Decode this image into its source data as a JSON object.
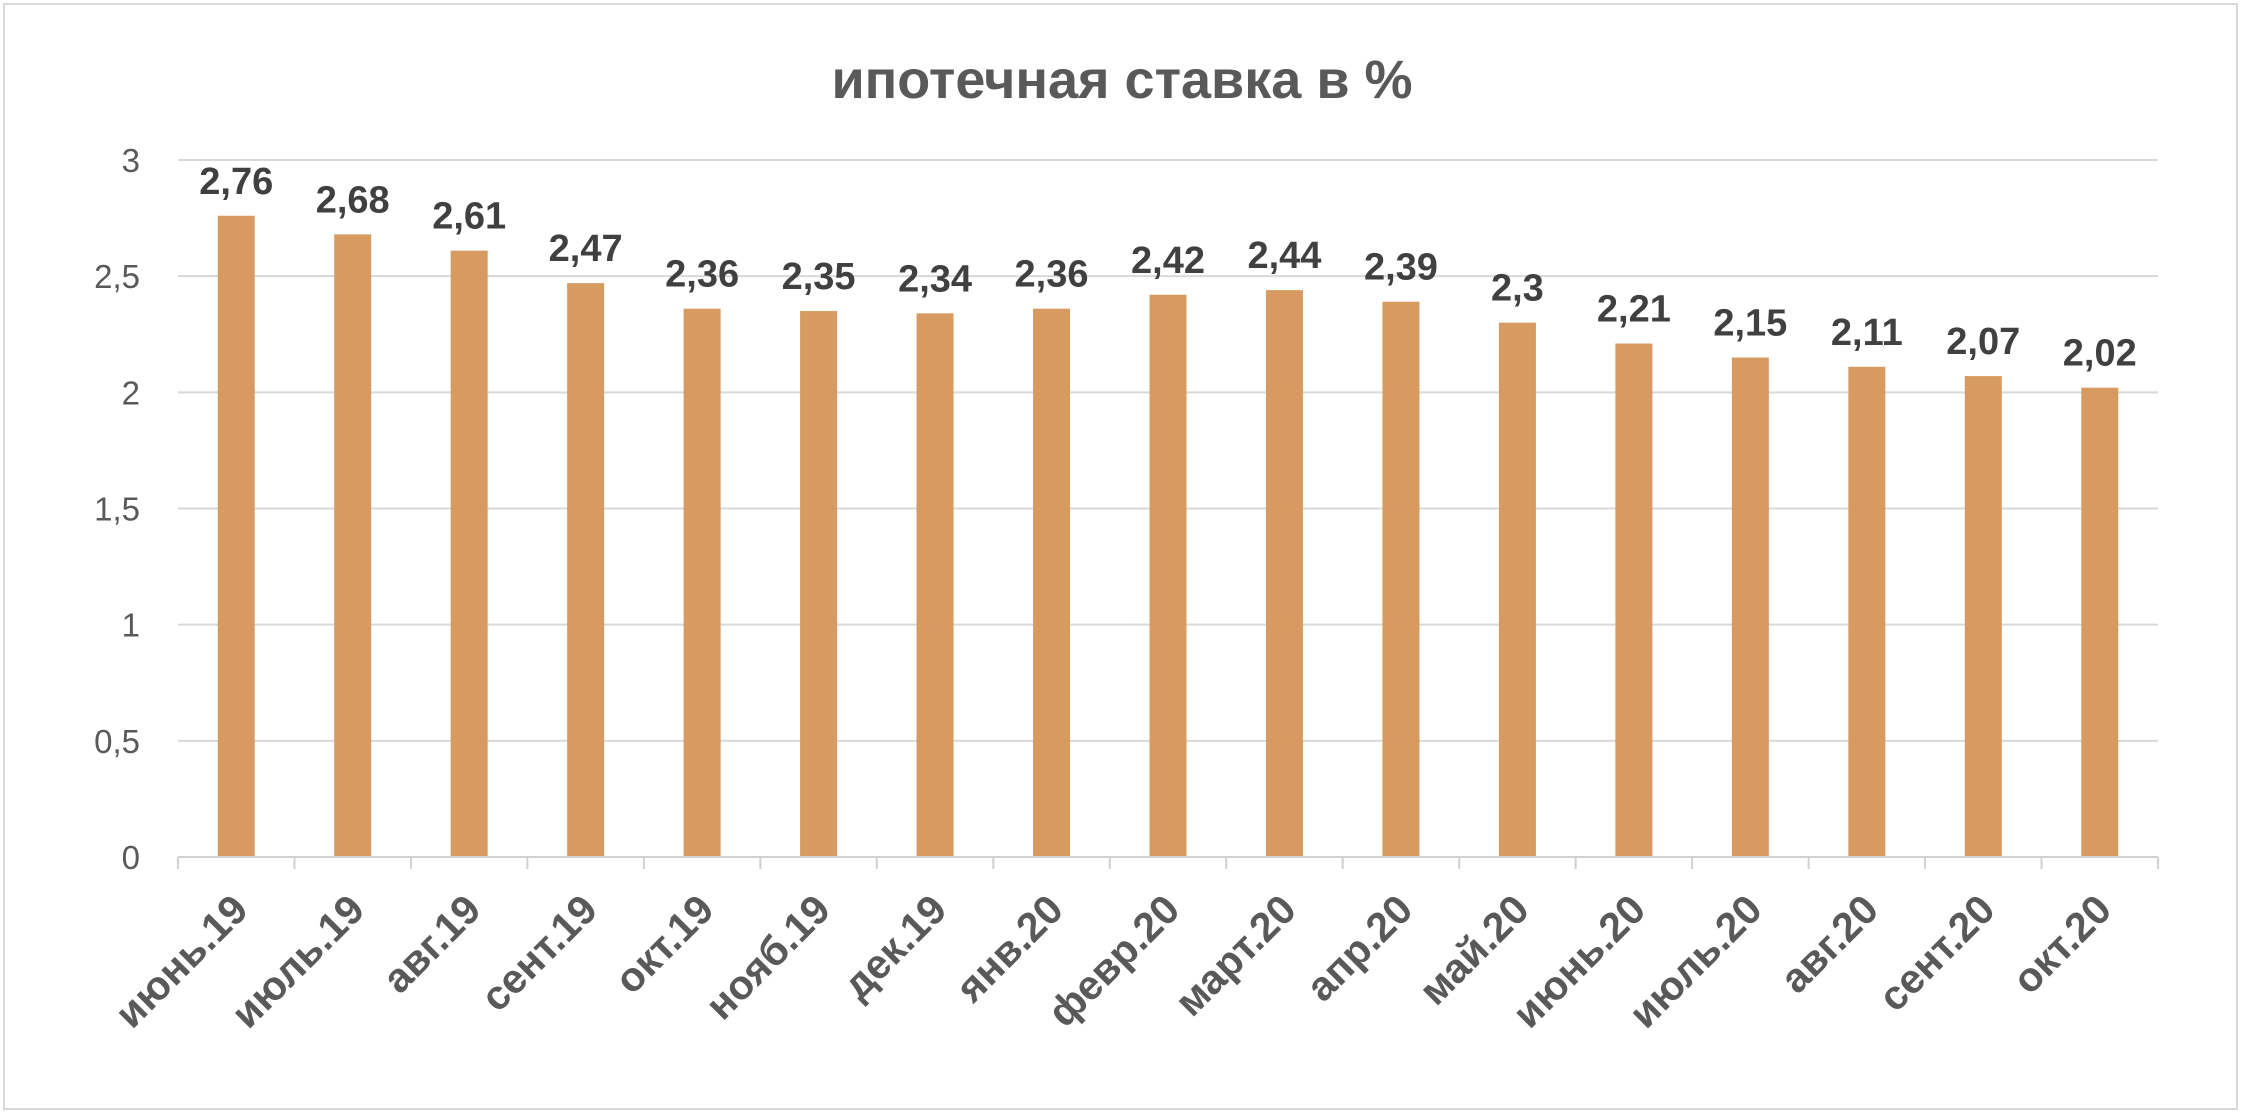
{
  "chart_data": {
    "type": "bar",
    "title": "ипотечная ставка в %",
    "categories": [
      "июнь.19",
      "июль.19",
      "авг.19",
      "сент.19",
      "окт.19",
      "нояб.19",
      "дек.19",
      "янв.20",
      "февр.20",
      "март.20",
      "апр.20",
      "май.20",
      "июнь.20",
      "июль.20",
      "авг.20",
      "сент.20",
      "окт.20"
    ],
    "values": [
      2.76,
      2.68,
      2.61,
      2.47,
      2.36,
      2.35,
      2.34,
      2.36,
      2.42,
      2.44,
      2.39,
      2.3,
      2.21,
      2.15,
      2.11,
      2.07,
      2.02
    ],
    "data_labels": [
      "2,76",
      "2,68",
      "2,61",
      "2,47",
      "2,36",
      "2,35",
      "2,34",
      "2,36",
      "2,42",
      "2,44",
      "2,39",
      "2,3",
      "2,21",
      "2,15",
      "2,11",
      "2,07",
      "2,02"
    ],
    "ylim": [
      0,
      3
    ],
    "y_ticks": [
      0,
      0.5,
      1,
      1.5,
      2,
      2.5,
      3
    ],
    "y_tick_labels": [
      "0",
      "0,5",
      "1",
      "1,5",
      "2",
      "2,5",
      "3"
    ],
    "xlabel": "",
    "ylabel": "",
    "grid": true,
    "legend": "none",
    "colors": {
      "bar": "#d79b62",
      "grid": "#d9d9d9",
      "axis": "#d0d0d0",
      "title": "#595959",
      "tick_text": "#595959",
      "label_text": "#404040",
      "frame": "#d9d9d9"
    }
  }
}
